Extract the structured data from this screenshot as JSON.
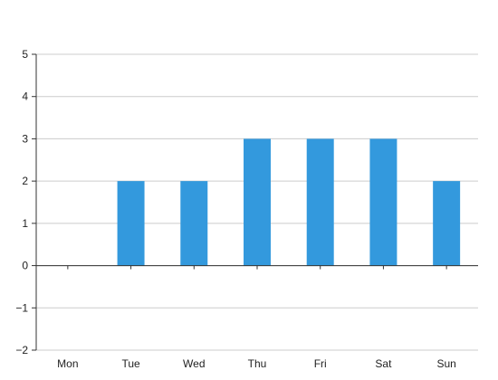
{
  "chart_data": {
    "type": "bar",
    "categories": [
      "Mon",
      "Tue",
      "Wed",
      "Thu",
      "Fri",
      "Sat",
      "Sun"
    ],
    "values": [
      0,
      2,
      2,
      3,
      3,
      3,
      2
    ],
    "ylim": [
      -2,
      5
    ],
    "yticks": [
      -2,
      -1,
      0,
      1,
      2,
      3,
      4,
      5
    ],
    "ytick_labels": [
      "−2",
      "−1",
      "0",
      "1",
      "2",
      "3",
      "4",
      "5"
    ],
    "grid": true,
    "bar_color": "#3399dd",
    "grid_color": "#cccccc",
    "axis_color": "#333333"
  }
}
